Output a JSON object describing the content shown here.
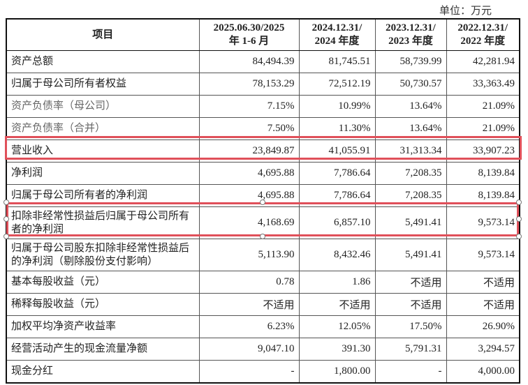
{
  "unit": "单位：万元",
  "headers": [
    "项目",
    "2025.06.30/2025\n年 1-6 月",
    "2024.12.31/\n2024 年度",
    "2023.12.31/\n2023 年度",
    "2022.12.31/\n2022 年度"
  ],
  "rows": [
    {
      "label": "资产总额",
      "values": [
        "84,494.39",
        "81,745.51",
        "58,739.99",
        "42,281.94"
      ]
    },
    {
      "label": "归属于母公司所有者权益",
      "values": [
        "78,153.29",
        "72,512.19",
        "50,730.57",
        "33,363.49"
      ]
    },
    {
      "label": "资产负债率（母公司）",
      "values": [
        "7.15%",
        "10.99%",
        "13.64%",
        "21.09%"
      ],
      "grey": true
    },
    {
      "label": "资产负债率（合并）",
      "values": [
        "7.50%",
        "11.30%",
        "13.64%",
        "21.09%"
      ],
      "grey": true
    },
    {
      "label": "营业收入",
      "values": [
        "23,849.87",
        "41,055.91",
        "31,313.34",
        "33,907.23"
      ],
      "highlight": true
    },
    {
      "label": "净利润",
      "values": [
        "4,695.88",
        "7,786.64",
        "7,208.35",
        "8,139.84"
      ]
    },
    {
      "label": "归属于母公司所有者的净利润",
      "values": [
        "4,695.88",
        "7,786.64",
        "7,208.35",
        "8,139.84"
      ]
    },
    {
      "label": "扣除非经常性损益后归属于母公司所有者的净利润",
      "values": [
        "4,168.69",
        "6,857.10",
        "5,491.41",
        "9,573.14"
      ],
      "highlight": true,
      "two": true
    },
    {
      "label": "归属于母公司股东扣除非经常性损益后的净利润（剔除股份支付影响）",
      "values": [
        "5,113.90",
        "8,432.46",
        "5,491.41",
        "9,573.14"
      ],
      "two": true
    },
    {
      "label": "基本每股收益（元）",
      "values": [
        "0.78",
        "1.86",
        "不适用",
        "不适用"
      ]
    },
    {
      "label": "稀释每股收益（元）",
      "values": [
        "不适用",
        "不适用",
        "不适用",
        "不适用"
      ]
    },
    {
      "label": "加权平均净资产收益率",
      "values": [
        "6.23%",
        "12.05%",
        "17.50%",
        "26.90%"
      ]
    },
    {
      "label": "经营活动产生的现金流量净额",
      "values": [
        "9,047.10",
        "391.30",
        "5,791.31",
        "3,294.57"
      ]
    },
    {
      "label": "现金分红",
      "values": [
        "-",
        "1,800.00",
        "-",
        "4,000.00"
      ]
    }
  ],
  "highlight_color": "#e0505a"
}
